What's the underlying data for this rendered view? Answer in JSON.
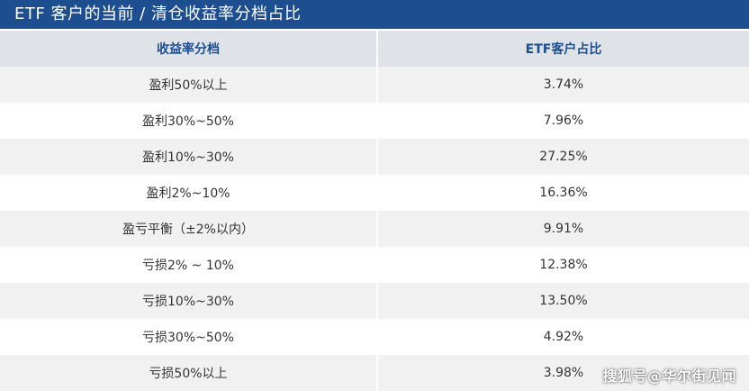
{
  "title": "ETF 客户的当前 / 清仓收益率分档占比",
  "table": {
    "headers": [
      "收益率分档",
      "ETF客户占比"
    ],
    "rows": [
      {
        "band": "盈利50%以上",
        "share": "3.74%"
      },
      {
        "band": "盈利30%~50%",
        "share": "7.96%"
      },
      {
        "band": "盈利10%~30%",
        "share": "27.25%"
      },
      {
        "band": "盈利2%~10%",
        "share": "16.36%"
      },
      {
        "band": "盈亏平衡（±2%以内）",
        "share": "9.91%"
      },
      {
        "band": "亏损2% ~ 10%",
        "share": "12.38%"
      },
      {
        "band": "亏损10%~30%",
        "share": "13.50%"
      },
      {
        "band": "亏损30%~50%",
        "share": "4.92%"
      },
      {
        "band": "亏损50%以上",
        "share": "3.98%"
      }
    ]
  },
  "watermark": "搜狐号@华尔街见闻",
  "colors": {
    "title_bg": "#1d4e8f",
    "header_bg": "#dfe3e8",
    "header_text": "#1d4e8f",
    "row_alt_bg": "#f1f1f1"
  }
}
